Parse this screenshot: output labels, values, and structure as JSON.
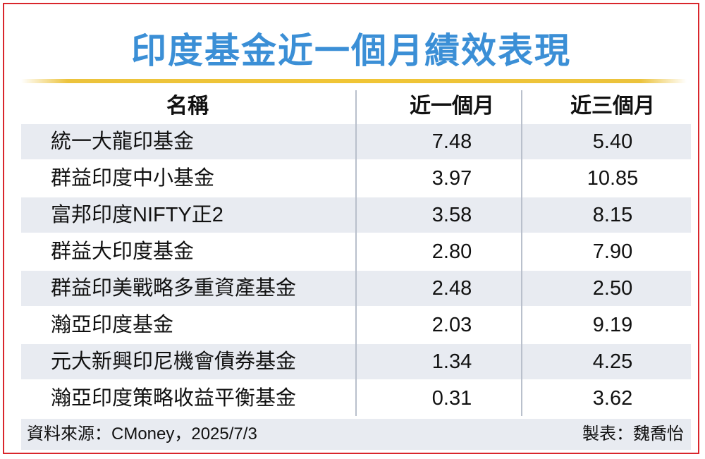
{
  "title": "印度基金近一個月績效表現",
  "chart_data": {
    "type": "table",
    "columns": [
      "名稱",
      "近一個月",
      "近三個月"
    ],
    "rows": [
      {
        "name": "統一大龍印基金",
        "one_month": "7.48",
        "three_month": "5.40"
      },
      {
        "name": "群益印度中小基金",
        "one_month": "3.97",
        "three_month": "10.85"
      },
      {
        "name": "富邦印度NIFTY正2",
        "one_month": "3.58",
        "three_month": "8.15"
      },
      {
        "name": "群益大印度基金",
        "one_month": "2.80",
        "three_month": "7.90"
      },
      {
        "name": "群益印美戰略多重資產基金",
        "one_month": "2.48",
        "three_month": "2.50"
      },
      {
        "name": "瀚亞印度基金",
        "one_month": "2.03",
        "three_month": "9.19"
      },
      {
        "name": "元大新興印尼機會債券基金",
        "one_month": "1.34",
        "three_month": "4.25"
      },
      {
        "name": "瀚亞印度策略收益平衡基金",
        "one_month": "0.31",
        "three_month": "3.62"
      }
    ]
  },
  "footer": {
    "source": "資料來源：CMoney，2025/7/3",
    "maker": "製表：魏喬怡"
  },
  "colors": {
    "title": "#3b8fd6",
    "frame": "#d9262c",
    "gold": "#f0c535",
    "stripe": "#e8ebf1"
  }
}
